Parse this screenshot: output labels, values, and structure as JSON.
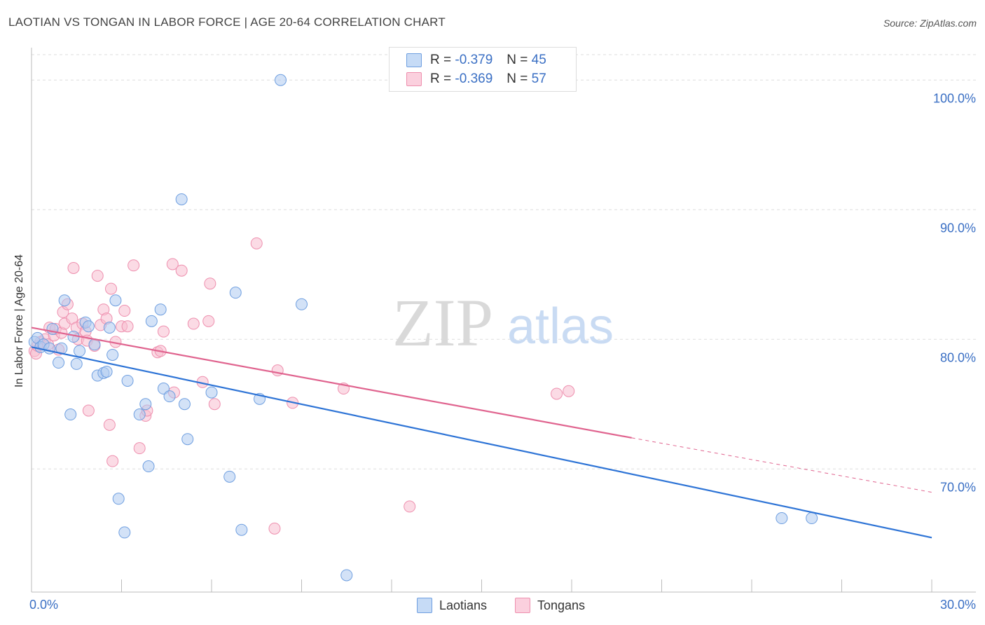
{
  "header": {
    "title": "LAOTIAN VS TONGAN IN LABOR FORCE | AGE 20-64 CORRELATION CHART",
    "source": "Source: ZipAtlas.com"
  },
  "watermark": {
    "zip": "ZIP",
    "atlas": "atlas"
  },
  "legend": {
    "rows": [
      {
        "r_label": "R =",
        "r_value": "-0.379",
        "n_label": "N =",
        "n_value": "45"
      },
      {
        "r_label": "R =",
        "r_value": "-0.369",
        "n_label": "N =",
        "n_value": "57"
      }
    ]
  },
  "bottom_legend": {
    "laotians": "Laotians",
    "tongans": "Tongans"
  },
  "colors": {
    "laotian_fill": "#aecbf1",
    "laotian_stroke": "#6f9fe0",
    "laotian_line": "#2e74d6",
    "tongan_fill": "#f8bdd0",
    "tongan_stroke": "#ee8fae",
    "tongan_line": "#e0648f",
    "axis_text": "#3a6fc4",
    "grid": "#dddddd"
  },
  "chart_data": {
    "type": "scatter",
    "title": "LAOTIAN VS TONGAN IN LABOR FORCE | AGE 20-64 CORRELATION CHART",
    "xlabel": "",
    "ylabel": "In Labor Force | Age 20-64",
    "xlim": [
      0,
      30
    ],
    "ylim": [
      60.5,
      102.5
    ],
    "x_tick_labels": [
      "0.0%",
      "30.0%"
    ],
    "y_ticks": [
      70,
      80,
      90,
      100
    ],
    "y_tick_labels": [
      "70.0%",
      "80.0%",
      "90.0%",
      "100.0%"
    ],
    "series": [
      {
        "name": "Laotians",
        "R": -0.379,
        "N": 45,
        "trend": {
          "x": [
            0,
            30
          ],
          "y": [
            79.4,
            64.7
          ]
        },
        "points": [
          {
            "x": 0.1,
            "y": 79.8
          },
          {
            "x": 0.2,
            "y": 80.1
          },
          {
            "x": 0.3,
            "y": 79.4
          },
          {
            "x": 0.4,
            "y": 79.6
          },
          {
            "x": 0.6,
            "y": 79.3
          },
          {
            "x": 0.7,
            "y": 80.8
          },
          {
            "x": 0.9,
            "y": 78.2
          },
          {
            "x": 1.0,
            "y": 79.3
          },
          {
            "x": 1.1,
            "y": 83.0
          },
          {
            "x": 1.3,
            "y": 74.2
          },
          {
            "x": 1.4,
            "y": 80.2
          },
          {
            "x": 1.5,
            "y": 78.1
          },
          {
            "x": 1.6,
            "y": 79.1
          },
          {
            "x": 1.8,
            "y": 81.3
          },
          {
            "x": 1.9,
            "y": 81.0
          },
          {
            "x": 2.1,
            "y": 79.6
          },
          {
            "x": 2.2,
            "y": 77.2
          },
          {
            "x": 2.4,
            "y": 77.4
          },
          {
            "x": 2.5,
            "y": 77.5
          },
          {
            "x": 2.6,
            "y": 80.9
          },
          {
            "x": 2.7,
            "y": 78.8
          },
          {
            "x": 2.8,
            "y": 83.0
          },
          {
            "x": 2.9,
            "y": 67.7
          },
          {
            "x": 3.1,
            "y": 65.1
          },
          {
            "x": 3.2,
            "y": 76.8
          },
          {
            "x": 3.6,
            "y": 74.2
          },
          {
            "x": 3.8,
            "y": 75.0
          },
          {
            "x": 3.9,
            "y": 70.2
          },
          {
            "x": 4.0,
            "y": 81.4
          },
          {
            "x": 4.3,
            "y": 82.3
          },
          {
            "x": 4.4,
            "y": 76.2
          },
          {
            "x": 4.6,
            "y": 75.6
          },
          {
            "x": 5.0,
            "y": 90.8
          },
          {
            "x": 5.1,
            "y": 75.0
          },
          {
            "x": 5.2,
            "y": 72.3
          },
          {
            "x": 6.0,
            "y": 75.9
          },
          {
            "x": 6.6,
            "y": 69.4
          },
          {
            "x": 6.8,
            "y": 83.6
          },
          {
            "x": 7.0,
            "y": 65.3
          },
          {
            "x": 7.6,
            "y": 75.4
          },
          {
            "x": 8.3,
            "y": 100.0
          },
          {
            "x": 9.0,
            "y": 82.7
          },
          {
            "x": 10.5,
            "y": 61.8
          },
          {
            "x": 25.0,
            "y": 66.2
          },
          {
            "x": 26.0,
            "y": 66.2
          }
        ]
      },
      {
        "name": "Tongans",
        "R": -0.369,
        "N": 57,
        "trend": {
          "x": [
            0,
            20
          ],
          "y": [
            80.9,
            72.4
          ]
        },
        "trend_dashed": {
          "x": [
            20,
            30
          ],
          "y": [
            72.4,
            68.2
          ]
        },
        "points": [
          {
            "x": 0.1,
            "y": 79.1
          },
          {
            "x": 0.15,
            "y": 78.9
          },
          {
            "x": 0.2,
            "y": 79.5
          },
          {
            "x": 0.3,
            "y": 79.8
          },
          {
            "x": 0.45,
            "y": 80.0
          },
          {
            "x": 0.55,
            "y": 79.6
          },
          {
            "x": 0.6,
            "y": 80.9
          },
          {
            "x": 0.75,
            "y": 80.3
          },
          {
            "x": 0.8,
            "y": 80.8
          },
          {
            "x": 0.9,
            "y": 79.2
          },
          {
            "x": 1.0,
            "y": 80.5
          },
          {
            "x": 1.05,
            "y": 82.1
          },
          {
            "x": 1.1,
            "y": 81.2
          },
          {
            "x": 1.2,
            "y": 82.7
          },
          {
            "x": 1.35,
            "y": 81.6
          },
          {
            "x": 1.4,
            "y": 85.5
          },
          {
            "x": 1.5,
            "y": 80.9
          },
          {
            "x": 1.55,
            "y": 80.0
          },
          {
            "x": 1.7,
            "y": 81.2
          },
          {
            "x": 1.8,
            "y": 80.6
          },
          {
            "x": 1.85,
            "y": 79.9
          },
          {
            "x": 1.9,
            "y": 74.5
          },
          {
            "x": 2.1,
            "y": 79.5
          },
          {
            "x": 2.2,
            "y": 84.9
          },
          {
            "x": 2.3,
            "y": 81.1
          },
          {
            "x": 2.4,
            "y": 82.3
          },
          {
            "x": 2.5,
            "y": 81.6
          },
          {
            "x": 2.6,
            "y": 73.4
          },
          {
            "x": 2.65,
            "y": 83.9
          },
          {
            "x": 2.7,
            "y": 70.6
          },
          {
            "x": 2.8,
            "y": 79.8
          },
          {
            "x": 3.0,
            "y": 81.0
          },
          {
            "x": 3.1,
            "y": 82.2
          },
          {
            "x": 3.2,
            "y": 81.0
          },
          {
            "x": 3.4,
            "y": 85.7
          },
          {
            "x": 3.6,
            "y": 71.6
          },
          {
            "x": 3.8,
            "y": 74.1
          },
          {
            "x": 3.85,
            "y": 74.5
          },
          {
            "x": 4.2,
            "y": 79.0
          },
          {
            "x": 4.3,
            "y": 79.1
          },
          {
            "x": 4.4,
            "y": 80.6
          },
          {
            "x": 4.7,
            "y": 85.8
          },
          {
            "x": 4.75,
            "y": 75.9
          },
          {
            "x": 5.0,
            "y": 85.3
          },
          {
            "x": 5.4,
            "y": 81.2
          },
          {
            "x": 5.7,
            "y": 76.7
          },
          {
            "x": 5.9,
            "y": 81.4
          },
          {
            "x": 5.95,
            "y": 84.3
          },
          {
            "x": 6.1,
            "y": 75.0
          },
          {
            "x": 7.5,
            "y": 87.4
          },
          {
            "x": 8.1,
            "y": 65.4
          },
          {
            "x": 8.2,
            "y": 77.6
          },
          {
            "x": 8.7,
            "y": 75.1
          },
          {
            "x": 10.4,
            "y": 76.2
          },
          {
            "x": 12.6,
            "y": 67.1
          },
          {
            "x": 17.5,
            "y": 75.8
          },
          {
            "x": 17.9,
            "y": 76.0
          }
        ]
      }
    ]
  }
}
